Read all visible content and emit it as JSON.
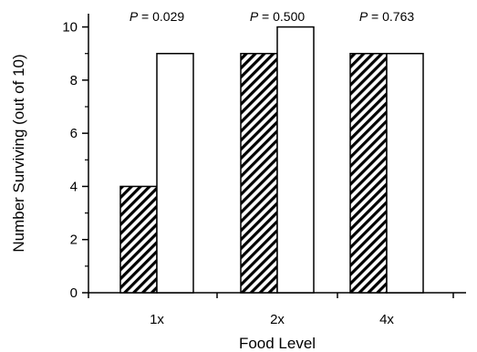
{
  "chart_data": {
    "type": "bar",
    "categories": [
      "1x",
      "2x",
      "4x"
    ],
    "series": [
      {
        "fill": "hatched",
        "values": [
          4,
          9,
          9
        ]
      },
      {
        "fill": "open",
        "values": [
          9,
          10,
          9
        ]
      }
    ],
    "annotations": [
      {
        "prefix": "P",
        "value": "= 0.029"
      },
      {
        "prefix": "P",
        "value": "= 0.500"
      },
      {
        "prefix": "P",
        "value": "= 0.763"
      }
    ],
    "xlabel": "Food Level",
    "ylabel": "Number Surviving (out of 10)",
    "ylim": [
      0,
      10.5
    ],
    "yticks": [
      0,
      2,
      4,
      6,
      8,
      10
    ],
    "yticks_minor": [
      1,
      3,
      5,
      7,
      9
    ],
    "grid": false,
    "legend": "none",
    "colors": {
      "bar_stroke": "#000000",
      "open_fill": "#ffffff",
      "hatch": "#000000",
      "axis": "#000000"
    }
  }
}
